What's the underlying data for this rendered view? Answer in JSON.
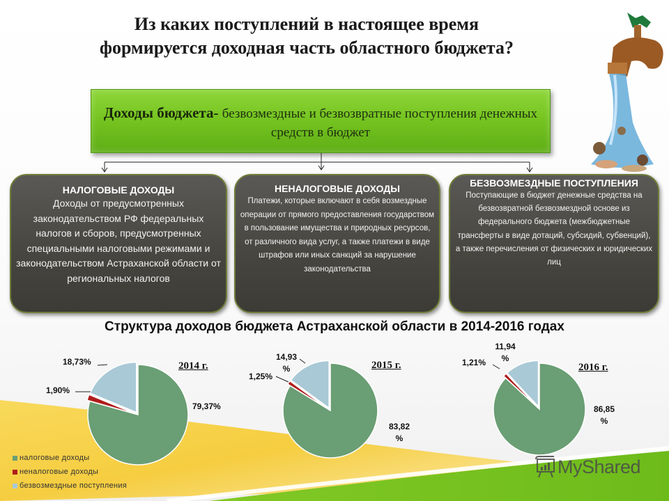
{
  "title": {
    "line1": "Из каких поступлений в настоящее время",
    "line2": "формируется доходная часть областного бюджета?"
  },
  "definition": {
    "term": "Доходы бюджета",
    "separator": "- ",
    "text": "безвозмездные и безвозвратные поступления денежных средств в бюджет"
  },
  "cards": [
    {
      "heading": "НАЛОГОВЫЕ ДОХОДЫ",
      "body": "Доходы от предусмотренных законодательством РФ федеральных налогов и сборов, предусмотренных специальными налоговыми режимами и законодательством Астраханской области от региональных налогов"
    },
    {
      "heading": "НЕНАЛОГОВЫЕ ДОХОДЫ",
      "body": "Платежи, которые включают в себя возмездные операции от прямого предоставления государством в пользование имущества и природных ресурсов, от различного вида услуг, а также платежи в виде штрафов или иных санкций за нарушение законодательства"
    },
    {
      "heading": "БЕЗВОЗМЕЗДНЫЕ ПОСТУПЛЕНИЯ",
      "body": "Поступающие в бюджет денежные средства на безвозвратной безвозмездной основе из федерального бюджета (межбюджетные трансферты в виде дотаций, субсидий, субвенций), а также перечисления от физических и юридических лиц"
    }
  ],
  "subtitle": "Структура доходов бюджета Астраханской области в 2014-2016 годах",
  "colors": {
    "tax": "#6a9e74",
    "non_tax": "#b01c1c",
    "gratuitous": "#a9c9d6",
    "green_box": "#76c521",
    "card_bg": "#46453f"
  },
  "legend": [
    {
      "label": "налоговые доходы",
      "color": "#6a9e74"
    },
    {
      "label": "неналоговые доходы",
      "color": "#b01c1c"
    },
    {
      "label": "безвозмездные поступления",
      "color": "#a9c9d6"
    }
  ],
  "chart_data": [
    {
      "type": "pie",
      "title": "2014 г.",
      "categories": [
        "налоговые доходы",
        "неналоговые доходы",
        "безвозмездные поступления"
      ],
      "values": [
        79.37,
        1.9,
        18.73
      ],
      "labels": [
        "79,37%",
        "1,90%",
        "18,73%"
      ]
    },
    {
      "type": "pie",
      "title": "2015 г.",
      "categories": [
        "налоговые доходы",
        "неналоговые доходы",
        "безвозмездные поступления"
      ],
      "values": [
        83.82,
        1.25,
        14.93
      ],
      "labels": [
        "83,82 %",
        "1,25%",
        "14,93 %"
      ]
    },
    {
      "type": "pie",
      "title": "2016 г.",
      "categories": [
        "налоговые доходы",
        "неналоговые доходы",
        "безвозмездные поступления"
      ],
      "values": [
        86.85,
        1.21,
        11.94
      ],
      "labels": [
        "86,85 %",
        "1,21%",
        "11,94 %"
      ]
    }
  ],
  "pct_labels": {
    "y2014": {
      "tax": "79,37%",
      "non_tax": "1,90%",
      "gratuitous": "18,73%"
    },
    "y2015": {
      "tax_num": "83,82",
      "tax_sym": "%",
      "non_tax": "1,25%",
      "gratuitous_num": "14,93",
      "gratuitous_sym": "%"
    },
    "y2016": {
      "tax_num": "86,85",
      "tax_sym": "%",
      "non_tax": "1,21%",
      "gratuitous_num": "11,94",
      "gratuitous_sym": "%"
    }
  },
  "watermark": "MyShared"
}
